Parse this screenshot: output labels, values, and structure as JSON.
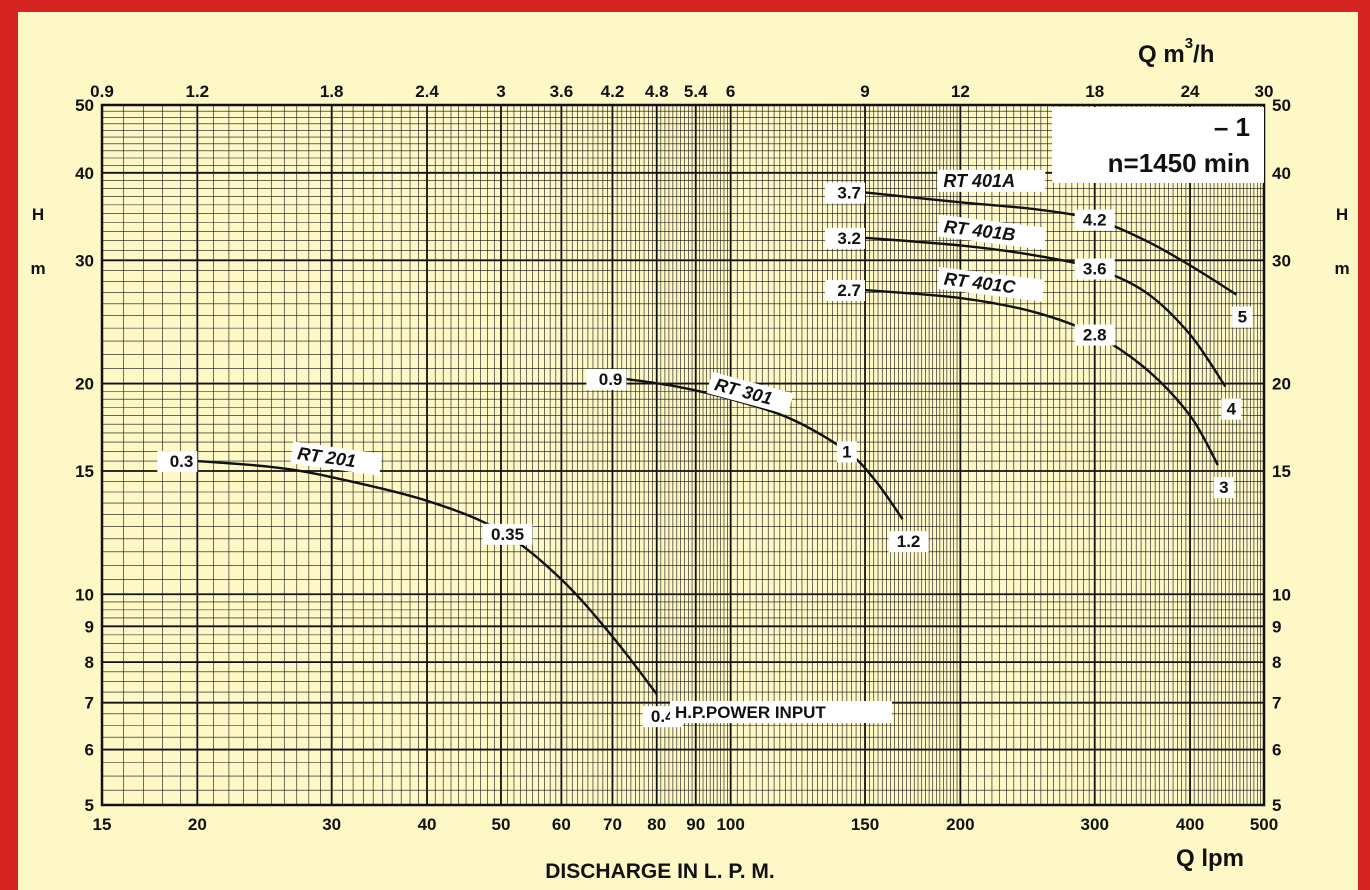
{
  "chart_data": {
    "type": "line",
    "title": "",
    "xlabel": "DISCHARGE IN L. P. M.",
    "xlabel_corner": "Q  lpm",
    "x2label_prefix": "Q  m",
    "x2label_sup": "3",
    "x2label_suffix": "/h",
    "ylabel": "H",
    "yunit": "m",
    "xscale": "log",
    "yscale": "log",
    "xlim": [
      15,
      500
    ],
    "ylim": [
      5,
      50
    ],
    "grid": true,
    "x_ticks": [
      "15",
      "20",
      "30",
      "40",
      "50",
      "60",
      "70",
      "80",
      "90",
      "100",
      "150",
      "200",
      "300",
      "400",
      "500"
    ],
    "x2_ticks": [
      "0.9",
      "1.2",
      "1.8",
      "2.4",
      "3",
      "3.6",
      "4.2",
      "4.8",
      "5.4",
      "6",
      "9",
      "12",
      "18",
      "24",
      "30"
    ],
    "y_ticks": [
      "5",
      "6",
      "7",
      "8",
      "9",
      "10",
      "15",
      "20",
      "30",
      "40",
      "50"
    ],
    "speed_note": {
      "line1": "– 1",
      "line2": "n=1450  min"
    },
    "power_caption": "H.P.POWER  INPUT",
    "series": [
      {
        "name": "RT  201",
        "points": [
          [
            20,
            15.5
          ],
          [
            25,
            15.2
          ],
          [
            30,
            14.7
          ],
          [
            40,
            13.6
          ],
          [
            50,
            12.3
          ],
          [
            60,
            10.5
          ],
          [
            70,
            8.7
          ],
          [
            80,
            7.2
          ]
        ],
        "power_labels": [
          {
            "x": 20,
            "y": 15.5,
            "text": "0.3"
          },
          {
            "x": 51,
            "y": 12.2,
            "text": "0.35"
          },
          {
            "x": 80,
            "y": 7.2,
            "text": "0.4"
          }
        ]
      },
      {
        "name": "RT  301",
        "points": [
          [
            73,
            20.3
          ],
          [
            85,
            19.8
          ],
          [
            100,
            19.0
          ],
          [
            120,
            17.8
          ],
          [
            142,
            16.0
          ],
          [
            155,
            14.5
          ],
          [
            168,
            12.8
          ]
        ],
        "power_labels": [
          {
            "x": 73,
            "y": 20.3,
            "text": "0.9"
          },
          {
            "x": 142,
            "y": 16.0,
            "text": "1"
          },
          {
            "x": 168,
            "y": 12.8,
            "text": "1.2"
          }
        ]
      },
      {
        "name": "RT  401A",
        "points": [
          [
            150,
            37.5
          ],
          [
            200,
            36.3
          ],
          [
            250,
            35.5
          ],
          [
            300,
            34.3
          ],
          [
            350,
            32.0
          ],
          [
            400,
            29.5
          ],
          [
            460,
            26.8
          ]
        ],
        "power_labels": [
          {
            "x": 150,
            "y": 37.5,
            "text": "3.7"
          },
          {
            "x": 300,
            "y": 34.3,
            "text": "4.2"
          },
          {
            "x": 460,
            "y": 26.8,
            "text": "5"
          }
        ]
      },
      {
        "name": "RT  401B",
        "points": [
          [
            150,
            32.3
          ],
          [
            200,
            31.5
          ],
          [
            250,
            30.5
          ],
          [
            300,
            29.2
          ],
          [
            350,
            27.0
          ],
          [
            400,
            23.5
          ],
          [
            445,
            19.8
          ]
        ],
        "power_labels": [
          {
            "x": 150,
            "y": 32.3,
            "text": "3.2"
          },
          {
            "x": 300,
            "y": 29.2,
            "text": "3.6"
          },
          {
            "x": 445,
            "y": 19.8,
            "text": "4"
          }
        ]
      },
      {
        "name": "RT  401C",
        "points": [
          [
            150,
            27.2
          ],
          [
            200,
            26.5
          ],
          [
            250,
            25.3
          ],
          [
            300,
            23.5
          ],
          [
            350,
            21.0
          ],
          [
            400,
            18.0
          ],
          [
            435,
            15.3
          ]
        ],
        "power_labels": [
          {
            "x": 150,
            "y": 27.2,
            "text": "2.7"
          },
          {
            "x": 300,
            "y": 23.5,
            "text": "2.8"
          },
          {
            "x": 435,
            "y": 15.3,
            "text": "3"
          }
        ]
      }
    ]
  },
  "colors": {
    "border": "#d6231f",
    "background": "#fef7c6",
    "ink": "#111111",
    "label_bg": "#ffffff"
  }
}
